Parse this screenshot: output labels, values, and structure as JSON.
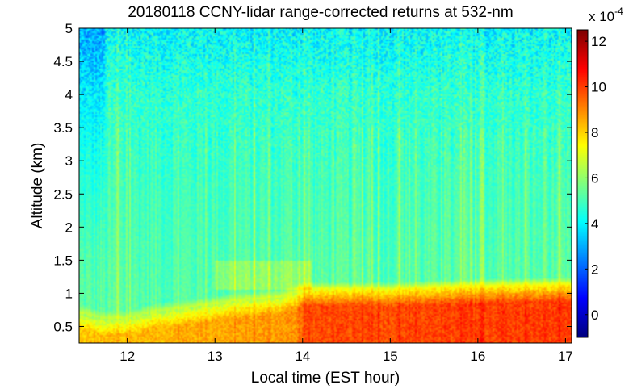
{
  "chart_data": {
    "type": "heatmap",
    "title": "20180118 CCNY-lidar range-corrected returns at 532-nm",
    "xlabel": "Local time (EST hour)",
    "ylabel": "Altitude (km)",
    "xlim": [
      11.45,
      17.07
    ],
    "ylim": [
      0.25,
      5.0
    ],
    "xticks": [
      12,
      13,
      14,
      15,
      16,
      17
    ],
    "xtick_labels": [
      "12",
      "13",
      "14",
      "15",
      "16",
      "17"
    ],
    "yticks": [
      0.5,
      1,
      1.5,
      2,
      2.5,
      3,
      3.5,
      4,
      4.5,
      5
    ],
    "ytick_labels": [
      "0.5",
      "1",
      "1.5",
      "2",
      "2.5",
      "3",
      "3.5",
      "4",
      "4.5",
      "5"
    ],
    "colorbar": {
      "colormap": "jet",
      "range": [
        -1,
        12.5
      ],
      "ticks": [
        0,
        2,
        4,
        6,
        8,
        10,
        12
      ],
      "tick_labels": [
        "0",
        "2",
        "4",
        "6",
        "8",
        "10",
        "12"
      ],
      "multiplier_base": "x 10",
      "multiplier_exp": "-4"
    },
    "grid": false,
    "background_level": 4.5,
    "boundary_layer_top_km": [
      {
        "hour": 11.5,
        "top": 0.7
      },
      {
        "hour": 11.7,
        "top": 0.62
      },
      {
        "hour": 12.0,
        "top": 0.62
      },
      {
        "hour": 12.3,
        "top": 0.72
      },
      {
        "hour": 12.8,
        "top": 0.8
      },
      {
        "hour": 13.2,
        "top": 0.88
      },
      {
        "hour": 13.8,
        "top": 0.95
      },
      {
        "hour": 14.0,
        "top": 1.05
      },
      {
        "hour": 15.0,
        "top": 1.05
      },
      {
        "hour": 16.0,
        "top": 1.1
      },
      {
        "hour": 17.0,
        "top": 1.12
      }
    ],
    "boundary_layer_peak_level": [
      {
        "hour": 11.5,
        "level": 8.2
      },
      {
        "hour": 13.9,
        "level": 8.8
      },
      {
        "hour": 14.05,
        "level": 9.8
      },
      {
        "hour": 17.0,
        "level": 10.0
      }
    ]
  }
}
